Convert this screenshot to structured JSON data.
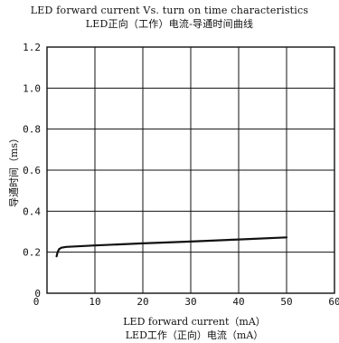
{
  "chart_data": {
    "type": "line",
    "title": "LED forward current Vs. turn on time characteristics",
    "subtitle": "LED正向（工作）电流-导通时间曲线",
    "xlabel": "LED forward current（mA）",
    "xlabel_cn": "LED工作（正向）电流（mA）",
    "ylabel": "导通时间（ms）",
    "xlim": [
      0,
      60
    ],
    "ylim": [
      0,
      1.2
    ],
    "xticks": [
      "0",
      "10",
      "20",
      "30",
      "40",
      "50",
      "60"
    ],
    "yticks": [
      "0",
      "0.2",
      "0.4",
      "0.6",
      "0.8",
      "1.0",
      "1.2"
    ],
    "grid": true,
    "series": [
      {
        "color": "#111111",
        "x": [
          2,
          2.2,
          2.5,
          3,
          4,
          10,
          20,
          30,
          40,
          50
        ],
        "y": [
          0.18,
          0.2,
          0.215,
          0.222,
          0.226,
          0.233,
          0.243,
          0.252,
          0.262,
          0.272
        ]
      }
    ]
  }
}
